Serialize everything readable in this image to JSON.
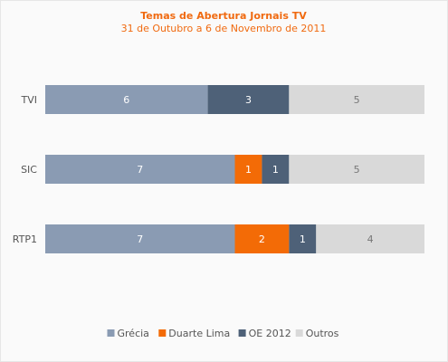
{
  "chart_data": {
    "type": "bar",
    "orientation": "horizontal",
    "stacked": "percent",
    "title": "Temas de Abertura Jornais TV",
    "subtitle": "31 de Outubro a 6 de Novembro de 2011",
    "categories": [
      "TVI",
      "SIC",
      "RTP1"
    ],
    "series": [
      {
        "name": "Grécia",
        "color": "#8a9bb3",
        "label_color": "#ffffff",
        "values": [
          6,
          7,
          7
        ]
      },
      {
        "name": "Duarte Lima",
        "color": "#f36b06",
        "label_color": "#ffffff",
        "values": [
          0,
          1,
          2
        ]
      },
      {
        "name": "OE 2012",
        "color": "#4e6178",
        "label_color": "#ffffff",
        "values": [
          3,
          1,
          1
        ]
      },
      {
        "name": "Outros",
        "color": "#d9d9d9",
        "label_color": "#777777",
        "values": [
          5,
          5,
          4
        ]
      }
    ],
    "grid": false,
    "legend": "bottom"
  }
}
